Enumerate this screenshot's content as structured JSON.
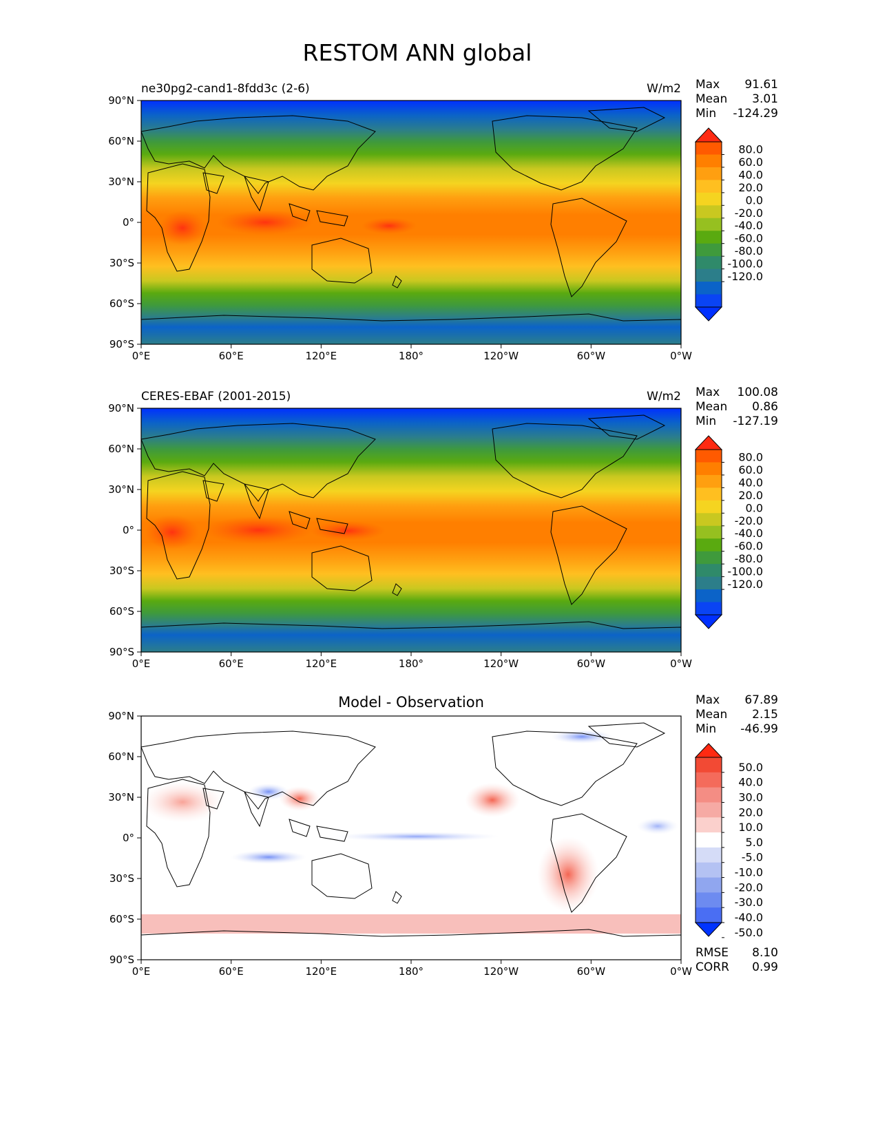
{
  "title": "RESTOM ANN global",
  "x_ticks": [
    "0°E",
    "60°E",
    "120°E",
    "180°",
    "120°W",
    "60°W",
    "0°W"
  ],
  "y_ticks": [
    "90°N",
    "60°N",
    "30°N",
    "0°",
    "30°S",
    "60°S",
    "90°S"
  ],
  "stat_labels": {
    "max": "Max",
    "mean": "Mean",
    "min": "Min",
    "rmse": "RMSE",
    "corr": "CORR"
  },
  "panels": [
    {
      "left_title": "ne30pg2-cand1-8fdd3c (2-6)",
      "center_title": "",
      "units": "W/m2",
      "stats": {
        "max": "91.61",
        "mean": "3.01",
        "min": "-124.29"
      },
      "colorbar_labels": [
        "80.0",
        "60.0",
        "40.0",
        "20.0",
        "0.0",
        "-20.0",
        "-40.0",
        "-60.0",
        "-80.0",
        "-100.0",
        "-120.0"
      ]
    },
    {
      "left_title": "CERES-EBAF (2001-2015)",
      "center_title": "",
      "units": "W/m2",
      "stats": {
        "max": "100.08",
        "mean": "0.86",
        "min": "-127.19"
      },
      "colorbar_labels": [
        "80.0",
        "60.0",
        "40.0",
        "20.0",
        "0.0",
        "-20.0",
        "-40.0",
        "-60.0",
        "-80.0",
        "-100.0",
        "-120.0"
      ]
    },
    {
      "left_title": "",
      "center_title": "Model - Observation",
      "units": "",
      "stats": {
        "max": "67.89",
        "mean": "2.15",
        "min": "-46.99"
      },
      "extra_stats": {
        "rmse": "8.10",
        "corr": "0.99"
      },
      "colorbar_labels": [
        "50.0",
        "40.0",
        "30.0",
        "20.0",
        "10.0",
        "5.0",
        "-5.0",
        "-10.0",
        "-20.0",
        "-30.0",
        "-40.0",
        "-50.0"
      ]
    }
  ],
  "colors": {
    "field_colorbar": [
      "#ff2a12",
      "#ff5a00",
      "#ff7f00",
      "#ff9f10",
      "#ffbf20",
      "#f5d420",
      "#c9c820",
      "#96c020",
      "#5aaa10",
      "#3f9a3c",
      "#2f8a6a",
      "#2c7e8a",
      "#0b63c8",
      "#0a44f4",
      "#0030ff"
    ],
    "diff_colorbar": [
      "#ff2a12",
      "#f24a34",
      "#f46b5b",
      "#f48d84",
      "#f6aaa4",
      "#fbd0cc",
      "#ffffff",
      "#d5dcf7",
      "#b4c2f3",
      "#90a6ef",
      "#6d8bf0",
      "#4a6ef3",
      "#0033ff"
    ],
    "coast": "#000000"
  }
}
